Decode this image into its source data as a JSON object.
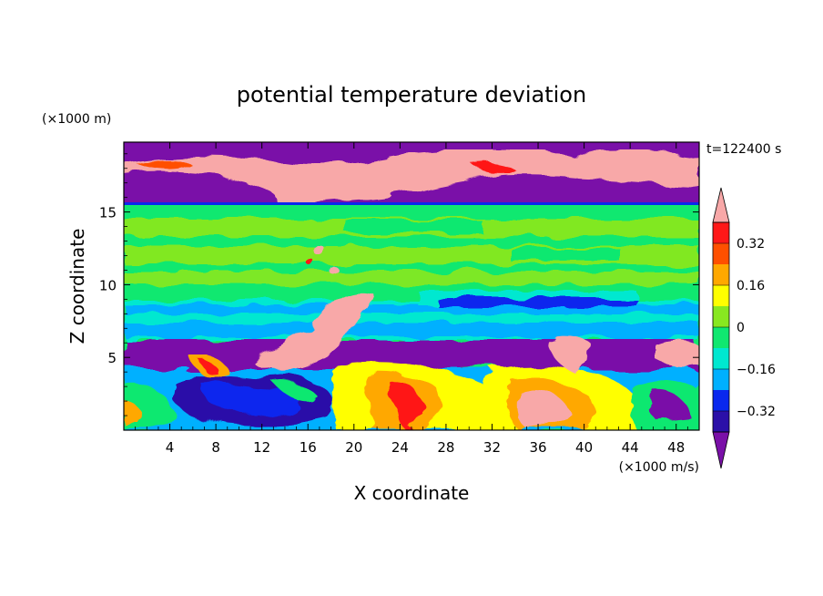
{
  "chart_data": {
    "type": "heatmap",
    "title": "potential temperature deviation",
    "xlabel": "X coordinate",
    "ylabel": "Z coordinate",
    "x_units": "(×1000 m/s)",
    "y_units": "(×1000 m)",
    "time_label": "t=122400 s",
    "xlim": [
      0,
      50
    ],
    "ylim": [
      0,
      19.8
    ],
    "x_ticks": [
      4,
      8,
      12,
      16,
      20,
      24,
      28,
      32,
      36,
      40,
      44,
      48
    ],
    "y_ticks": [
      5,
      10,
      15
    ],
    "colorbar": {
      "levels": [
        -0.4,
        -0.32,
        -0.24,
        -0.16,
        -0.08,
        0,
        0.08,
        0.16,
        0.24,
        0.32,
        0.4
      ],
      "labels": [
        -0.32,
        -0.16,
        0,
        0.16,
        0.32
      ],
      "label_text": [
        "−0.32",
        "−0.16",
        "0",
        "0.16",
        "0.32"
      ],
      "colors": [
        "#7a10a8",
        "#2b10a8",
        "#0a28ee",
        "#00b0ff",
        "#00e8d0",
        "#10e870",
        "#88e820",
        "#ffff00",
        "#ffa800",
        "#ff5000",
        "#ff1818",
        "#f8a8a8"
      ]
    },
    "regions": [
      {
        "name": "upper purple layer",
        "z": [
          16,
          19.8
        ],
        "value": -0.45
      },
      {
        "name": "upper pink layer",
        "z": [
          16.5,
          19
        ],
        "value": 0.45
      },
      {
        "name": "green layer",
        "z": [
          9,
          15.5
        ],
        "value": 0.05
      },
      {
        "name": "cyan layer",
        "z": [
          6.2,
          9
        ],
        "value": -0.12
      },
      {
        "name": "lower purple layer",
        "z": [
          4,
          6.3
        ],
        "value": -0.45
      },
      {
        "name": "boundary layer",
        "z": [
          0,
          4
        ],
        "value": 0.0
      }
    ]
  }
}
